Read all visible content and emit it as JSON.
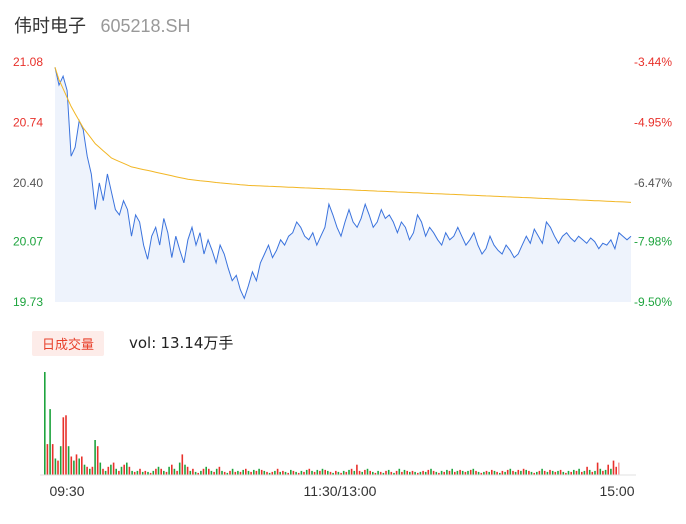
{
  "header": {
    "stock_name": "伟时电子",
    "stock_code": "605218.SH"
  },
  "volume_panel": {
    "tab_label": "日成交量",
    "vol_label": "vol:",
    "vol_value": "13.14万手"
  },
  "colors": {
    "price_line": "#3b73dd",
    "avg_line": "#f2b624",
    "up": "#e8312b",
    "down": "#1ea43e",
    "up_faint": "#f2a2a2"
  },
  "chart_data": [
    {
      "type": "line",
      "title": "",
      "xlabel": "",
      "ylabel": "",
      "ylim": [
        19.73,
        21.08
      ],
      "y_ticks": [
        "21.08",
        "20.74",
        "20.40",
        "20.07",
        "19.73"
      ],
      "y_ticks_right": [
        "-3.44%",
        "-4.95%",
        "-6.47%",
        "-7.98%",
        "-9.50%"
      ],
      "x_ticks": [
        "09:30",
        "11:30/13:00",
        "15:00"
      ],
      "grid": false,
      "series": [
        {
          "values": [
            21.05,
            20.95,
            21.0,
            20.92,
            20.55,
            20.6,
            20.75,
            20.7,
            20.55,
            20.45,
            20.25,
            20.4,
            20.3,
            20.45,
            20.35,
            20.25,
            20.22,
            20.3,
            20.25,
            20.1,
            20.22,
            20.18,
            20.05,
            19.97,
            20.1,
            20.15,
            20.05,
            20.2,
            20.12,
            19.98,
            20.1,
            20.02,
            19.95,
            20.08,
            20.15,
            20.05,
            20.12,
            20.0,
            20.08,
            20.02,
            19.95,
            20.05,
            20.0,
            19.92,
            19.85,
            19.88,
            19.8,
            19.75,
            19.82,
            19.9,
            19.85,
            19.95,
            20.0,
            20.05,
            19.98,
            20.02,
            20.08,
            20.05,
            20.1,
            20.12,
            20.18,
            20.15,
            20.1,
            20.08,
            20.12,
            20.05,
            20.1,
            20.15,
            20.28,
            20.22,
            20.15,
            20.1,
            20.18,
            20.25,
            20.18,
            20.15,
            20.2,
            20.28,
            20.22,
            20.15,
            20.18,
            20.25,
            20.2,
            20.22,
            20.18,
            20.12,
            20.18,
            20.15,
            20.08,
            20.12,
            20.22,
            20.18,
            20.1,
            20.15,
            20.12,
            20.08,
            20.05,
            20.12,
            20.08,
            20.1,
            20.15,
            20.1,
            20.05,
            20.08,
            20.12,
            20.05,
            20.0,
            20.03,
            20.1,
            20.05,
            20.02,
            20.0,
            20.05,
            20.02,
            19.98,
            20.0,
            20.05,
            20.1,
            20.06,
            20.14,
            20.1,
            20.06,
            20.18,
            20.15,
            20.1,
            20.06,
            20.1,
            20.12,
            20.09,
            20.07,
            20.1,
            20.08,
            20.06,
            20.09,
            20.07,
            20.03,
            20.06,
            20.05,
            20.08,
            20.03,
            20.12,
            20.1,
            20.08,
            20.1
          ]
        },
        {
          "values": [
            21.05,
            20.98,
            20.93,
            20.88,
            20.83,
            20.79,
            20.75,
            20.71,
            20.68,
            20.65,
            20.62,
            20.6,
            20.58,
            20.56,
            20.54,
            20.53,
            20.52,
            20.51,
            20.5,
            20.49,
            20.485,
            20.48,
            20.475,
            20.47,
            20.465,
            20.46,
            20.455,
            20.45,
            20.445,
            20.44,
            20.435,
            20.43,
            20.425,
            20.42,
            20.418,
            20.415,
            20.412,
            20.41,
            20.408,
            20.405,
            20.402,
            20.4,
            20.398,
            20.396,
            20.394,
            20.392,
            20.39,
            20.388,
            20.386,
            20.385,
            20.384,
            20.383,
            20.382,
            20.381,
            20.38,
            20.379,
            20.378,
            20.377,
            20.376,
            20.375,
            20.374,
            20.373,
            20.372,
            20.371,
            20.37,
            20.369,
            20.368,
            20.367,
            20.366,
            20.365,
            20.364,
            20.363,
            20.362,
            20.361,
            20.36,
            20.359,
            20.358,
            20.357,
            20.356,
            20.355,
            20.354,
            20.353,
            20.352,
            20.351,
            20.35,
            20.349,
            20.348,
            20.347,
            20.346,
            20.345,
            20.344,
            20.343,
            20.342,
            20.341,
            20.34,
            20.339,
            20.338,
            20.337,
            20.336,
            20.335,
            20.334,
            20.333,
            20.332,
            20.331,
            20.33,
            20.329,
            20.328,
            20.327,
            20.326,
            20.325,
            20.324,
            20.323,
            20.322,
            20.321,
            20.32,
            20.319,
            20.318,
            20.317,
            20.316,
            20.315,
            20.314,
            20.313,
            20.312,
            20.311,
            20.31,
            20.309,
            20.308,
            20.307,
            20.306,
            20.305,
            20.304,
            20.303,
            20.302,
            20.301,
            20.3,
            20.299,
            20.298,
            20.297,
            20.296,
            20.295,
            20.294,
            20.293,
            20.292,
            20.29
          ]
        }
      ]
    },
    {
      "type": "bar",
      "title": "",
      "xlabel": "",
      "ylabel": "",
      "ylim": [
        0,
        100
      ],
      "x_ticks": [
        "09:30",
        "11:30/13:00",
        "15:00"
      ],
      "series": [
        {
          "values": [
            100,
            30,
            64,
            30,
            16,
            14,
            28,
            56,
            58,
            28,
            18,
            14,
            20,
            16,
            18,
            10,
            8,
            6,
            8,
            34,
            28,
            12,
            6,
            4,
            8,
            10,
            12,
            6,
            4,
            8,
            10,
            12,
            8,
            4,
            3,
            4,
            6,
            3,
            4,
            3,
            2,
            4,
            6,
            8,
            6,
            4,
            3,
            8,
            10,
            6,
            4,
            12,
            20,
            10,
            8,
            4,
            6,
            3,
            2,
            4,
            6,
            8,
            6,
            4,
            3,
            6,
            8,
            4,
            3,
            2,
            4,
            6,
            3,
            4,
            3,
            5,
            6,
            4,
            3,
            5,
            4,
            6,
            5,
            4,
            3,
            2,
            3,
            4,
            6,
            3,
            4,
            3,
            2,
            5,
            4,
            3,
            2,
            4,
            3,
            5,
            6,
            4,
            3,
            5,
            4,
            6,
            5,
            4,
            3,
            2,
            4,
            3,
            2,
            4,
            3,
            5,
            6,
            4,
            10,
            4,
            3,
            5,
            6,
            4,
            3,
            2,
            4,
            3,
            2,
            4,
            5,
            3,
            2,
            4,
            6,
            3,
            5,
            4,
            3,
            4,
            3,
            2,
            3,
            4,
            3,
            5,
            6,
            4,
            3,
            2,
            4,
            3,
            5,
            4,
            6,
            3,
            4,
            5,
            4,
            3,
            4,
            5,
            6,
            4,
            3,
            2,
            3,
            4,
            3,
            5,
            4,
            3,
            2,
            4,
            3,
            5,
            6,
            4,
            3,
            5,
            4,
            6,
            5,
            4,
            3,
            2,
            3,
            4,
            6,
            4,
            3,
            5,
            4,
            3,
            4,
            5,
            3,
            2,
            4,
            3,
            5,
            4,
            6,
            3,
            4,
            8,
            5,
            3,
            4,
            12,
            6,
            4,
            5,
            10,
            6,
            14,
            8,
            12
          ],
          "direction": [
            "d",
            "u",
            "d",
            "u",
            "d",
            "u",
            "d",
            "u",
            "u",
            "d",
            "u",
            "d",
            "u",
            "d",
            "u",
            "d",
            "u",
            "d",
            "u",
            "d",
            "u",
            "d",
            "u",
            "d",
            "u",
            "d",
            "u",
            "d",
            "u",
            "d",
            "u",
            "d",
            "u",
            "d",
            "u",
            "d",
            "u",
            "d",
            "u",
            "d",
            "u",
            "d",
            "u",
            "d",
            "u",
            "d",
            "u",
            "d",
            "u",
            "d",
            "u",
            "d",
            "u",
            "d",
            "u",
            "d",
            "u",
            "d",
            "u",
            "d",
            "u",
            "d",
            "u",
            "d",
            "u",
            "d",
            "u",
            "d",
            "u",
            "d",
            "u",
            "d",
            "u",
            "d",
            "u",
            "d",
            "u",
            "d",
            "u",
            "d",
            "u",
            "d",
            "u",
            "d",
            "u",
            "d",
            "u",
            "d",
            "u",
            "d",
            "u",
            "d",
            "u",
            "d",
            "u",
            "d",
            "u",
            "d",
            "u",
            "d",
            "u",
            "d",
            "u",
            "d",
            "u",
            "d",
            "u",
            "d",
            "u",
            "d",
            "u",
            "d",
            "u",
            "d",
            "u",
            "d",
            "u",
            "d",
            "u",
            "u",
            "d",
            "u",
            "d",
            "u",
            "d",
            "u",
            "d",
            "u",
            "d",
            "u",
            "d",
            "u",
            "d",
            "u",
            "d",
            "u",
            "d",
            "u",
            "d",
            "u",
            "d",
            "u",
            "d",
            "u",
            "d",
            "u",
            "d",
            "u",
            "d",
            "u",
            "d",
            "u",
            "d",
            "u",
            "d",
            "u",
            "d",
            "u",
            "d",
            "u",
            "d",
            "u",
            "d",
            "u",
            "d",
            "u",
            "d",
            "u",
            "d",
            "u",
            "d",
            "u",
            "d",
            "u",
            "d",
            "u",
            "d",
            "u",
            "d",
            "u",
            "d",
            "u",
            "d",
            "u",
            "d",
            "u",
            "d",
            "u",
            "d",
            "u",
            "d",
            "u",
            "d",
            "u",
            "d",
            "u",
            "d",
            "u",
            "d",
            "u",
            "d",
            "u",
            "d",
            "u",
            "d",
            "u",
            "d",
            "u",
            "d",
            "u",
            "d",
            "u",
            "d",
            "u",
            "d",
            "u",
            "u",
            "d",
            "u",
            "u",
            "d",
            "u",
            "u"
          ]
        }
      ]
    }
  ]
}
